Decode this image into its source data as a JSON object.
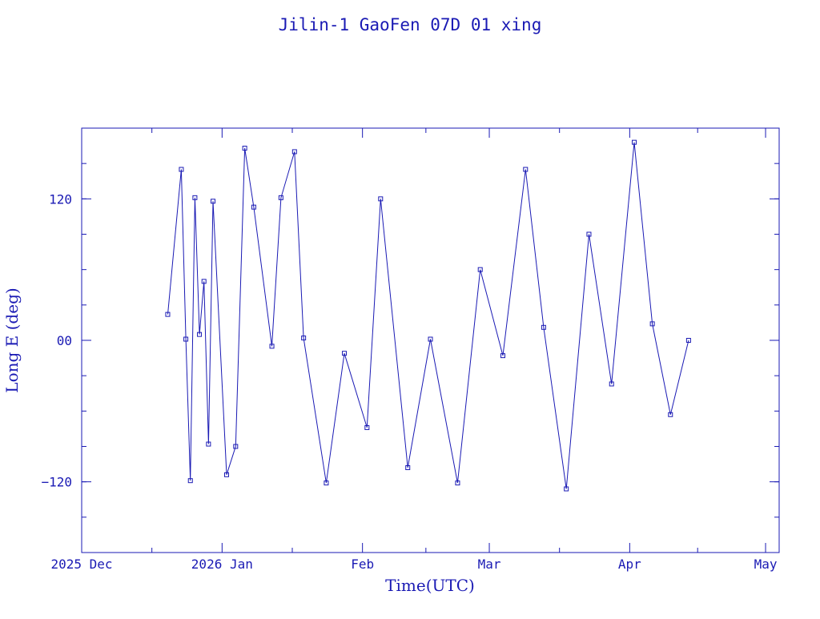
{
  "chart_data": {
    "type": "line",
    "title": "Jilin-1 GaoFen 07D 01 xing",
    "xlabel": "Time(UTC)",
    "ylabel": "Long E (deg)",
    "x_ticks": [
      {
        "date": "2025-12-01",
        "label": "2025 Dec"
      },
      {
        "date": "2026-01-01",
        "label": "2026 Jan"
      },
      {
        "date": "2026-02-01",
        "label": "Feb"
      },
      {
        "date": "2026-03-01",
        "label": "Mar"
      },
      {
        "date": "2026-04-01",
        "label": "Apr"
      },
      {
        "date": "2026-05-01",
        "label": "May"
      }
    ],
    "y_ticks": [
      {
        "value": -120,
        "label": "−120"
      },
      {
        "value": 0,
        "label": "00"
      },
      {
        "value": 120,
        "label": "120"
      }
    ],
    "xlim": [
      "2025-12-01",
      "2026-05-04"
    ],
    "ylim": [
      -180,
      180
    ],
    "grid": false,
    "line_color": "#1a1ab4",
    "series": [
      {
        "x": [
          "2025-12-20",
          "2025-12-23",
          "2025-12-24",
          "2025-12-25",
          "2025-12-26",
          "2025-12-27",
          "2025-12-28",
          "2025-12-29",
          "2025-12-30",
          "2026-01-02",
          "2026-01-04",
          "2026-01-06",
          "2026-01-08",
          "2026-01-12",
          "2026-01-14",
          "2026-01-17",
          "2026-01-19",
          "2026-01-24",
          "2026-01-28",
          "2026-02-02",
          "2026-02-05",
          "2026-02-11",
          "2026-02-16",
          "2026-02-22",
          "2026-02-27",
          "2026-03-04",
          "2026-03-09",
          "2026-03-13",
          "2026-03-18",
          "2026-03-23",
          "2026-03-28",
          "2026-04-02",
          "2026-04-06",
          "2026-04-10",
          "2026-04-14"
        ],
        "y": [
          22,
          145,
          1,
          -119,
          121,
          5,
          50,
          -88,
          118,
          -114,
          -90,
          163,
          113,
          -5,
          121,
          160,
          2,
          -121,
          -11,
          -74,
          120,
          -108,
          1,
          -121,
          60,
          -13,
          145,
          11,
          -126,
          90,
          -37,
          168,
          14,
          -63,
          0
        ]
      }
    ]
  }
}
